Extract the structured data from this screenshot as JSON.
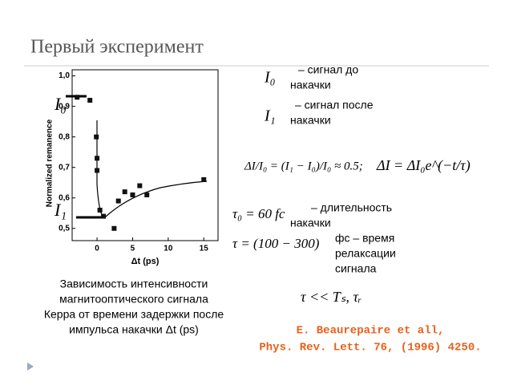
{
  "title": "Первый эксперимент",
  "chart_data": {
    "type": "scatter",
    "x_label": "Δt (ps)",
    "y_label": "Normalized remanence",
    "xlim": [
      -3.5,
      17
    ],
    "ylim": [
      0.46,
      1.02
    ],
    "xticks": [
      0,
      5,
      10,
      15
    ],
    "yticks": [
      {
        "value": 0.5,
        "label": "0,5"
      },
      {
        "value": 0.6,
        "label": "0,6"
      },
      {
        "value": 0.7,
        "label": "0,7"
      },
      {
        "value": 0.8,
        "label": "0,8"
      },
      {
        "value": 0.9,
        "label": "0,9"
      },
      {
        "value": 1.0,
        "label": "1,0"
      }
    ],
    "color": "#111111",
    "x": [
      -2.8,
      -1,
      -0.1,
      0,
      0,
      0.4,
      0.9,
      2.4,
      3,
      3.9,
      5,
      6,
      7,
      15
    ],
    "y": [
      0.93,
      0.92,
      0.8,
      0.73,
      0.69,
      0.56,
      0.54,
      0.5,
      0.59,
      0.62,
      0.61,
      0.64,
      0.61,
      0.66
    ],
    "level_labels": [
      "I₀",
      "I₁"
    ]
  },
  "caption": [
    "Зависимость интенсивности",
    "магнитооптического сигнала",
    "Керра от времени задержки после",
    "импульса накачки Δt (ps)"
  ],
  "notes": [
    {
      "symbol": "I₀",
      "text": [
        "– сигнал до",
        "накачки"
      ]
    },
    {
      "symbol": "I₁",
      "text": [
        "– сигнал после",
        "накачки"
      ]
    },
    {
      "symbol": "ΔI/I₀ = (I₁ − I₀)/I₀ ≈ 0.5;",
      "text": []
    },
    {
      "symbol": "ΔI = ΔI₀e^(−t/τ)",
      "text": []
    },
    {
      "symbol": "τ₀ = 60 fc",
      "text": [
        "– длительность",
        "накачки"
      ]
    },
    {
      "symbol": "τ = (100 − 300)",
      "text": [
        "фс – время",
        "релаксации",
        "сигнала"
      ]
    },
    {
      "symbol": "τ << Tₛ, τᵣ",
      "text": []
    }
  ],
  "citation": [
    "E. Beaurepaire et all,",
    "Phys. Rev. Lett. 76, (1996) 4250."
  ]
}
